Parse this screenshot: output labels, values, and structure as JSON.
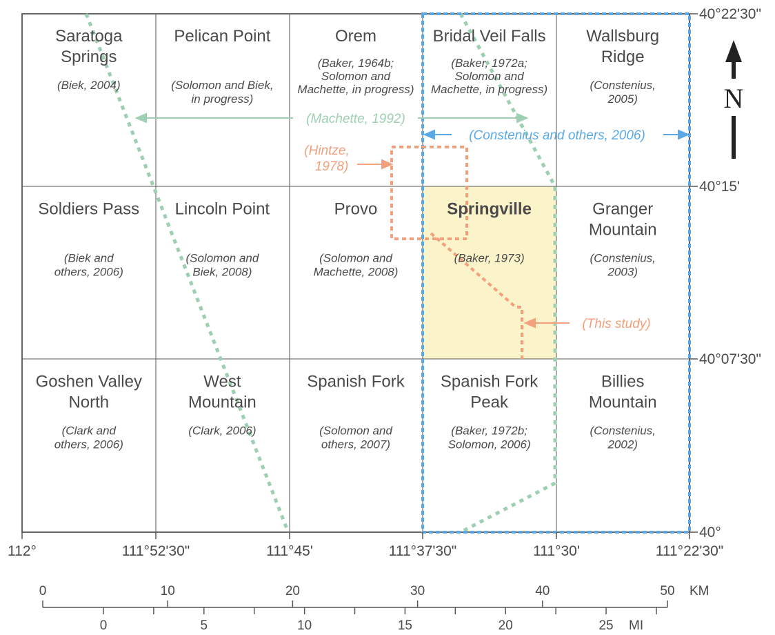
{
  "colors": {
    "grid": "#555555",
    "text": "#4a4a4a",
    "green_boundary": "#9fcfb2",
    "blue_box": "#5aa9e6",
    "orange": "#f3a07c",
    "highlight": "#fbf3c9"
  },
  "quads": [
    {
      "name": "Saratoga Springs",
      "lines": [
        "Saratoga",
        "Springs"
      ],
      "refs": [
        "(Biek, 2004)"
      ]
    },
    {
      "name": "Pelican Point",
      "lines": [
        "Pelican Point"
      ],
      "refs": [
        "(Solomon and Biek,",
        "in progress)"
      ]
    },
    {
      "name": "Orem",
      "lines": [
        "Orem"
      ],
      "refs": [
        "(Baker, 1964b;",
        "Solomon and",
        "Machette, in progress)"
      ]
    },
    {
      "name": "Bridal Veil Falls",
      "lines": [
        "Bridal Veil Falls"
      ],
      "refs": [
        "(Baker, 1972a;",
        "Solomon and",
        "Machette, in progress)"
      ]
    },
    {
      "name": "Wallsburg Ridge",
      "lines": [
        "Wallsburg",
        "Ridge"
      ],
      "refs": [
        "(Constenius,",
        "2005)"
      ]
    },
    {
      "name": "Soldiers Pass",
      "lines": [
        "Soldiers Pass"
      ],
      "refs": [
        "(Biek and",
        "others, 2006)"
      ]
    },
    {
      "name": "Lincoln Point",
      "lines": [
        "Lincoln Point"
      ],
      "refs": [
        "(Solomon and",
        "Biek, 2008)"
      ]
    },
    {
      "name": "Provo",
      "lines": [
        "Provo"
      ],
      "refs": [
        "(Solomon and",
        "Machette, 2008)"
      ]
    },
    {
      "name": "Springville",
      "lines": [
        "Springville"
      ],
      "refs": [
        "(Baker, 1973)"
      ],
      "bold": true
    },
    {
      "name": "Granger Mountain",
      "lines": [
        "Granger",
        "Mountain"
      ],
      "refs": [
        "(Constenius,",
        "2003)"
      ]
    },
    {
      "name": "Goshen Valley North",
      "lines": [
        "Goshen Valley",
        "North"
      ],
      "refs": [
        "(Clark and",
        "others, 2006)"
      ]
    },
    {
      "name": "West Mountain",
      "lines": [
        "West",
        "Mountain"
      ],
      "refs": [
        "(Clark, 2006)"
      ]
    },
    {
      "name": "Spanish Fork",
      "lines": [
        "Spanish Fork"
      ],
      "refs": [
        "(Solomon and",
        "others, 2007)"
      ]
    },
    {
      "name": "Spanish Fork Peak",
      "lines": [
        "Spanish Fork",
        "Peak"
      ],
      "refs": [
        "(Baker, 1972b;",
        "Solomon, 2006)"
      ]
    },
    {
      "name": "Billies Mountain",
      "lines": [
        "Billies",
        "Mountain"
      ],
      "refs": [
        "(Constenius,",
        "2002)"
      ]
    }
  ],
  "longitudes": [
    "112°",
    "111°52'30\"",
    "111°45'",
    "111°37'30\"",
    "111°30'",
    "111°22'30\""
  ],
  "latitudes": [
    "40°22'30\"",
    "40°15'",
    "40°07'30\"",
    "40°"
  ],
  "annotations": {
    "machette": "(Machette, 1992)",
    "constenius": "(Constenius and others, 2006)",
    "hintze": [
      "(Hintze,",
      "1978)"
    ],
    "this_study": "(This study)"
  },
  "north_arrow": {
    "label": "N"
  },
  "scale": {
    "km_labels": [
      "0",
      "10",
      "20",
      "30",
      "40",
      "50"
    ],
    "km_unit": "KM",
    "mi_labels": [
      "0",
      "5",
      "10",
      "15",
      "20",
      "25"
    ],
    "mi_unit": "MI"
  }
}
